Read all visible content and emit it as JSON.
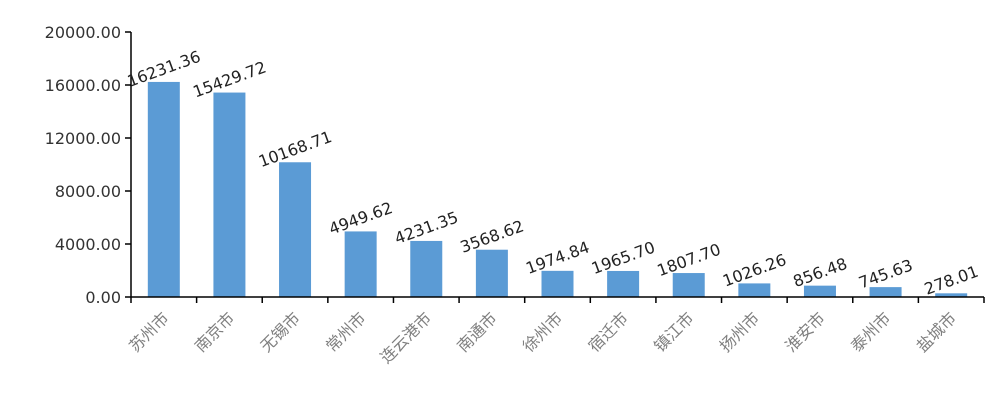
{
  "chart_data": {
    "type": "bar",
    "title": "",
    "xlabel": "",
    "ylabel": "",
    "categories": [
      "苏州市",
      "南京市",
      "无锡市",
      "常州市",
      "连云港市",
      "南通市",
      "徐州市",
      "宿迁市",
      "镇江市",
      "扬州市",
      "淮安市",
      "泰州市",
      "盐城市"
    ],
    "values": [
      16231.36,
      15429.72,
      10168.71,
      4949.62,
      4231.35,
      3568.62,
      1974.84,
      1965.7,
      1807.7,
      1026.26,
      856.48,
      745.63,
      278.01
    ],
    "data_labels": [
      "16231.36",
      "15429.72",
      "10168.71",
      "4949.62",
      "4231.35",
      "3568.62",
      "1974.84",
      "1965.70",
      "1807.70",
      "1026.26",
      "856.48",
      "745.63",
      "278.01"
    ],
    "yticks": [
      "0.00",
      "4000.00",
      "8000.00",
      "12000.00",
      "16000.00",
      "20000.00"
    ],
    "ylim": [
      0,
      20000
    ],
    "grid": false,
    "legend": "none",
    "colors": {
      "bar": "#5b9bd5",
      "axis": "#000000"
    }
  }
}
